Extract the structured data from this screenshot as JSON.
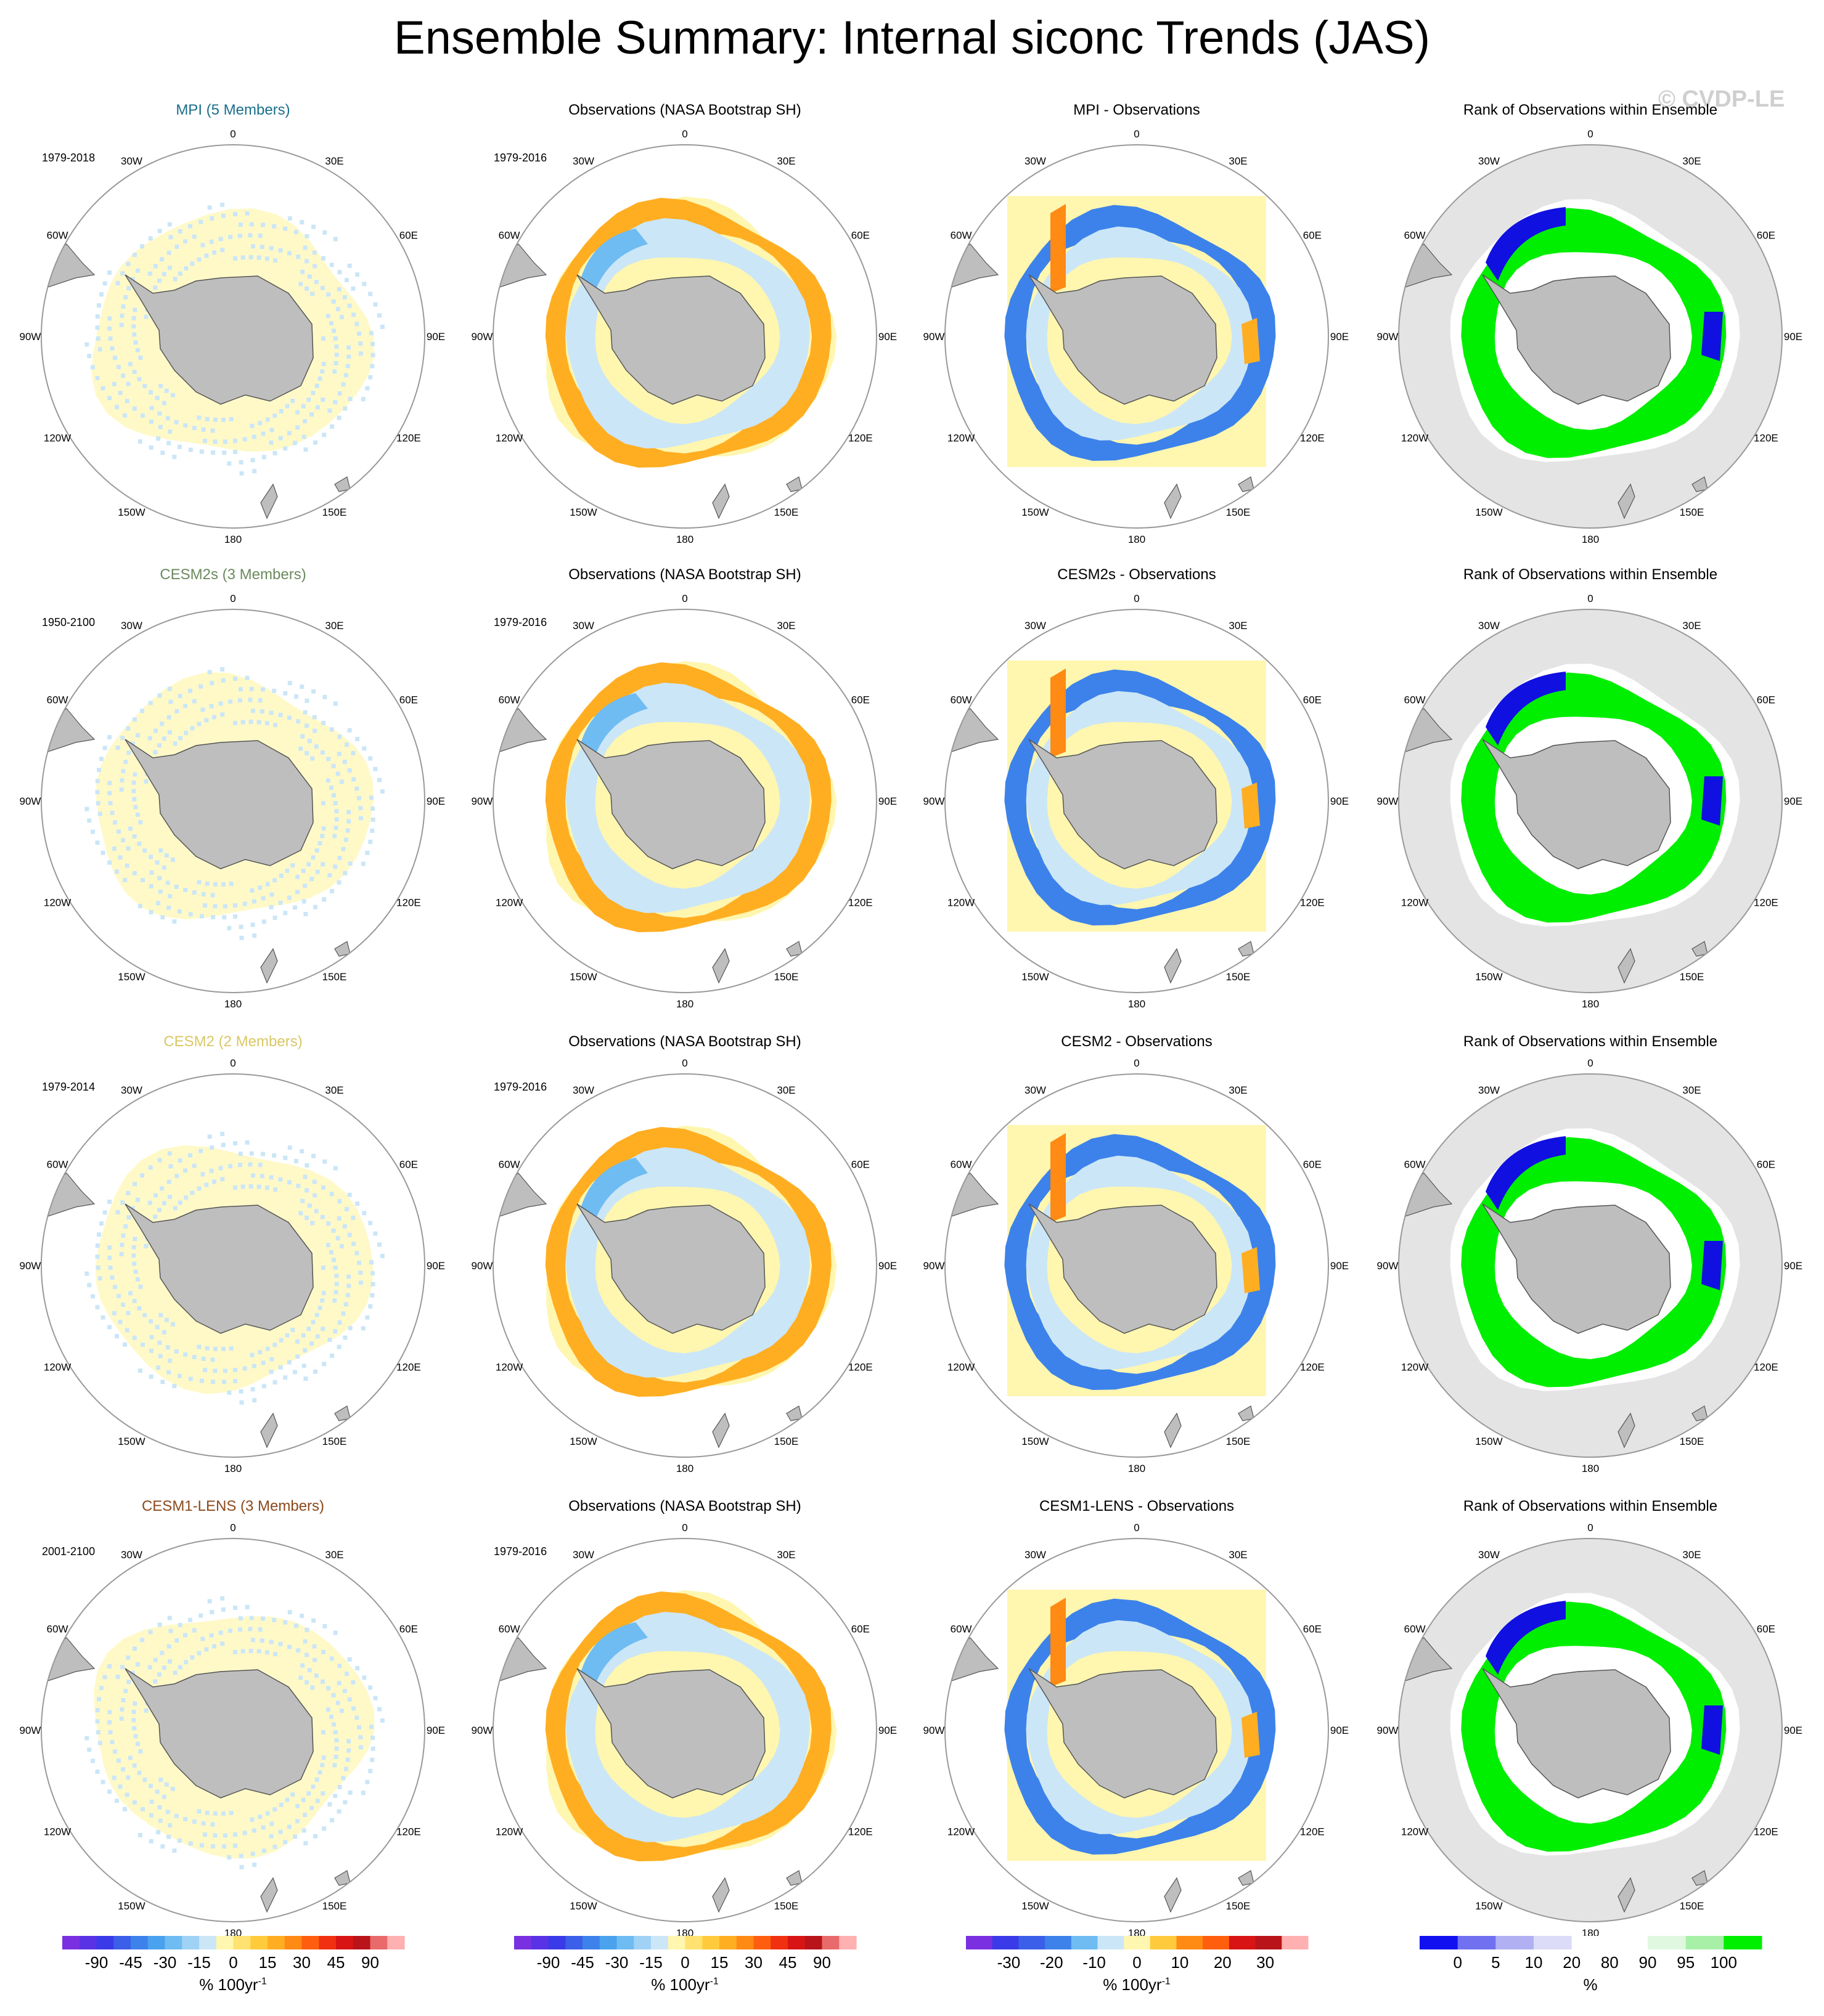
{
  "title": "Ensemble Summary: Internal siconc Trends (JAS)",
  "watermark": "© CVDP-LE",
  "lon_labels": [
    "0",
    "30E",
    "60E",
    "90E",
    "120E",
    "150E",
    "180",
    "150W",
    "120W",
    "90W",
    "60W",
    "30W"
  ],
  "rows": [
    {
      "model_title": "MPI (5 Members)",
      "model_color": "#1a6e8c",
      "model_period": "1979-2018",
      "obs_title": "Observations (NASA Bootstrap SH)",
      "obs_period": "1979-2016",
      "diff_title": "MPI - Observations",
      "rank_title": "Rank of Observations within Ensemble"
    },
    {
      "model_title": "CESM2s (3 Members)",
      "model_color": "#6b8a5e",
      "model_period": "1950-2100",
      "obs_title": "Observations (NASA Bootstrap SH)",
      "obs_period": "1979-2016",
      "diff_title": "CESM2s - Observations",
      "rank_title": "Rank of Observations within Ensemble"
    },
    {
      "model_title": "CESM2 (2 Members)",
      "model_color": "#d9c766",
      "model_period": "1979-2014",
      "obs_title": "Observations (NASA Bootstrap SH)",
      "obs_period": "1979-2016",
      "diff_title": "CESM2 - Observations",
      "rank_title": "Rank of Observations within Ensemble"
    },
    {
      "model_title": "CESM1-LENS (3 Members)",
      "model_color": "#8b4a1c",
      "model_period": "2001-2100",
      "obs_title": "Observations (NASA Bootstrap SH)",
      "obs_period": "1979-2016",
      "diff_title": "CESM1-LENS - Observations",
      "rank_title": "Rank of Observations within Ensemble"
    }
  ],
  "colorbars": [
    {
      "ticks": [
        "-90",
        "-45",
        "-30",
        "-15",
        "0",
        "15",
        "30",
        "45",
        "90"
      ],
      "units": "% 100yr",
      "units_sup": "-1",
      "colors": [
        "#7a30e0",
        "#5a32e6",
        "#3a3ae8",
        "#3b5fe8",
        "#3c82ea",
        "#4aa2ee",
        "#6fbcf2",
        "#9fd2f5",
        "#cbe6f7",
        "#fff6b0",
        "#ffe270",
        "#ffcb3c",
        "#ffae22",
        "#ff8a14",
        "#ff5e0e",
        "#f03010",
        "#d81414",
        "#b8141a",
        "#e86a6a",
        "#ffb0b0"
      ]
    },
    {
      "ticks": [
        "-90",
        "-45",
        "-30",
        "-15",
        "0",
        "15",
        "30",
        "45",
        "90"
      ],
      "units": "% 100yr",
      "units_sup": "-1",
      "colors": [
        "#7a30e0",
        "#5a32e6",
        "#3a3ae8",
        "#3b5fe8",
        "#3c82ea",
        "#4aa2ee",
        "#6fbcf2",
        "#9fd2f5",
        "#cbe6f7",
        "#fff6b0",
        "#ffe270",
        "#ffcb3c",
        "#ffae22",
        "#ff8a14",
        "#ff5e0e",
        "#f03010",
        "#d81414",
        "#b8141a",
        "#e86a6a",
        "#ffb0b0"
      ]
    },
    {
      "ticks": [
        "-30",
        "-20",
        "-10",
        "0",
        "10",
        "20",
        "30"
      ],
      "units": "% 100yr",
      "units_sup": "-1",
      "colors": [
        "#7a30e0",
        "#3a3ae8",
        "#3b5fe8",
        "#3c82ea",
        "#6fbcf2",
        "#cbe6f7",
        "#fff6b0",
        "#ffcb3c",
        "#ff8a14",
        "#ff5e0e",
        "#d81414",
        "#b8141a",
        "#ffb0b0"
      ]
    },
    {
      "ticks": [
        "0",
        "5",
        "10",
        "20",
        "80",
        "90",
        "95",
        "100"
      ],
      "units": "%",
      "units_sup": "",
      "colors": [
        "#1010f0",
        "#7070f0",
        "#b0b0f2",
        "#dcdcf8",
        "#ffffff",
        "#ffffff",
        "#e0f8e0",
        "#a8f0a8",
        "#00ee00"
      ]
    }
  ],
  "colors": {
    "land": "#bebebe",
    "ocean_rank": "#e4e4e4",
    "obs_fill": "#fff6b0",
    "rank_green": "#00ee00",
    "rank_blue": "#1010e0",
    "diff_blue": "#3c82ea",
    "obs_orange": "#ffae22",
    "light_blue": "#cbe6f7"
  }
}
